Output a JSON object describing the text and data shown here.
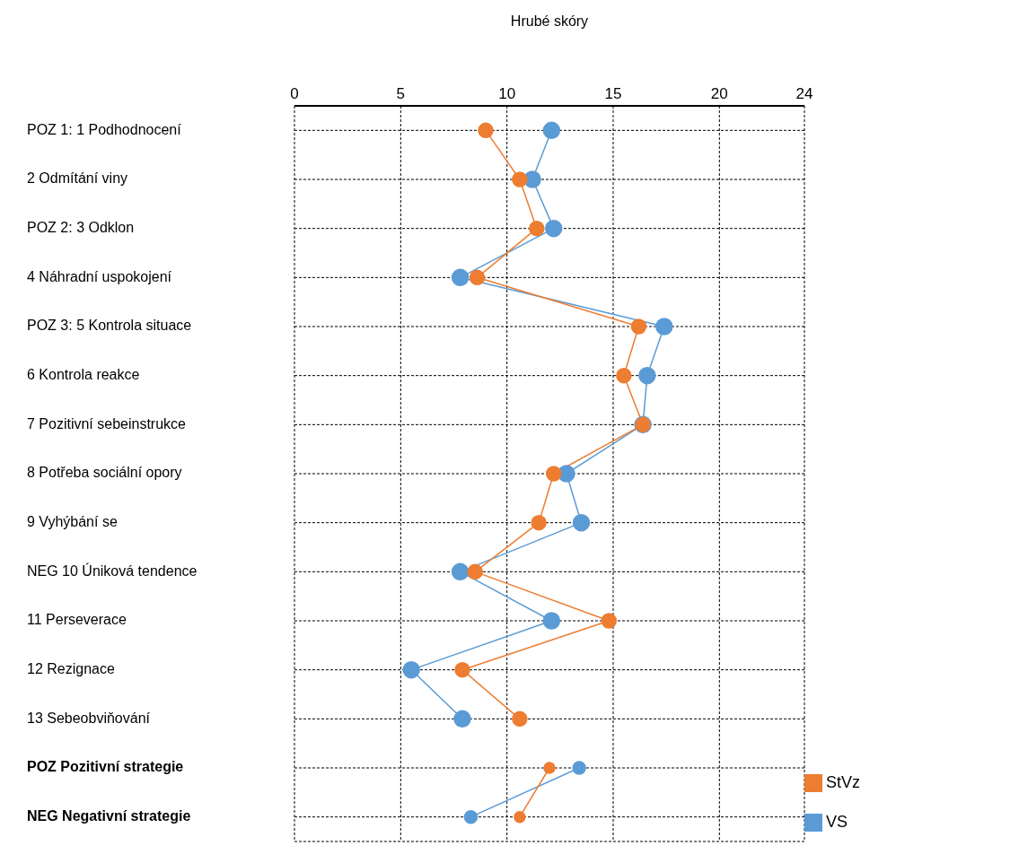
{
  "chart_data": {
    "type": "line",
    "orientation": "horizontal",
    "xlabel": "Hrubé skóry",
    "categories": [
      "POZ 1: 1 Podhodnocení",
      "2 Odmítání viny",
      "POZ 2: 3 Odklon",
      "4 Náhradní uspokojení",
      "POZ 3: 5 Kontrola situace",
      "6 Kontrola reakce",
      "7 Pozitivní sebeinstrukce",
      "8 Potřeba sociální opory",
      "9 Vyhýbání se",
      "NEG 10 Úniková tendence",
      "11 Perseverace",
      "12 Rezignace",
      "13 Sebeobviňování",
      "POZ Pozitivní strategie",
      "NEG Negativní strategie"
    ],
    "series": [
      {
        "name": "VS",
        "color": "#5b9bd5",
        "values": [
          12.1,
          11.2,
          12.2,
          7.8,
          17.4,
          16.6,
          16.4,
          12.8,
          13.5,
          7.8,
          12.1,
          5.5,
          7.9,
          null,
          null
        ]
      },
      {
        "name": "StVz",
        "color": "#ed7d31",
        "values": [
          9.0,
          10.6,
          11.4,
          8.6,
          16.2,
          15.5,
          16.4,
          12.2,
          11.5,
          8.5,
          14.8,
          7.9,
          10.6,
          null,
          null
        ]
      },
      {
        "color": "#5b9bd5",
        "values": [
          null,
          null,
          null,
          null,
          null,
          null,
          null,
          null,
          null,
          null,
          null,
          null,
          null,
          13.4,
          8.3
        ]
      },
      {
        "color": "#ed7d31",
        "values": [
          null,
          null,
          null,
          null,
          null,
          null,
          null,
          null,
          null,
          null,
          null,
          null,
          null,
          12.0,
          10.6
        ]
      }
    ],
    "xlim": [
      0,
      24
    ],
    "xticks": [
      0,
      5,
      10,
      15,
      20,
      24
    ],
    "grid": true,
    "marker": "circle",
    "line_style": "solid",
    "legend": "bottom right"
  }
}
